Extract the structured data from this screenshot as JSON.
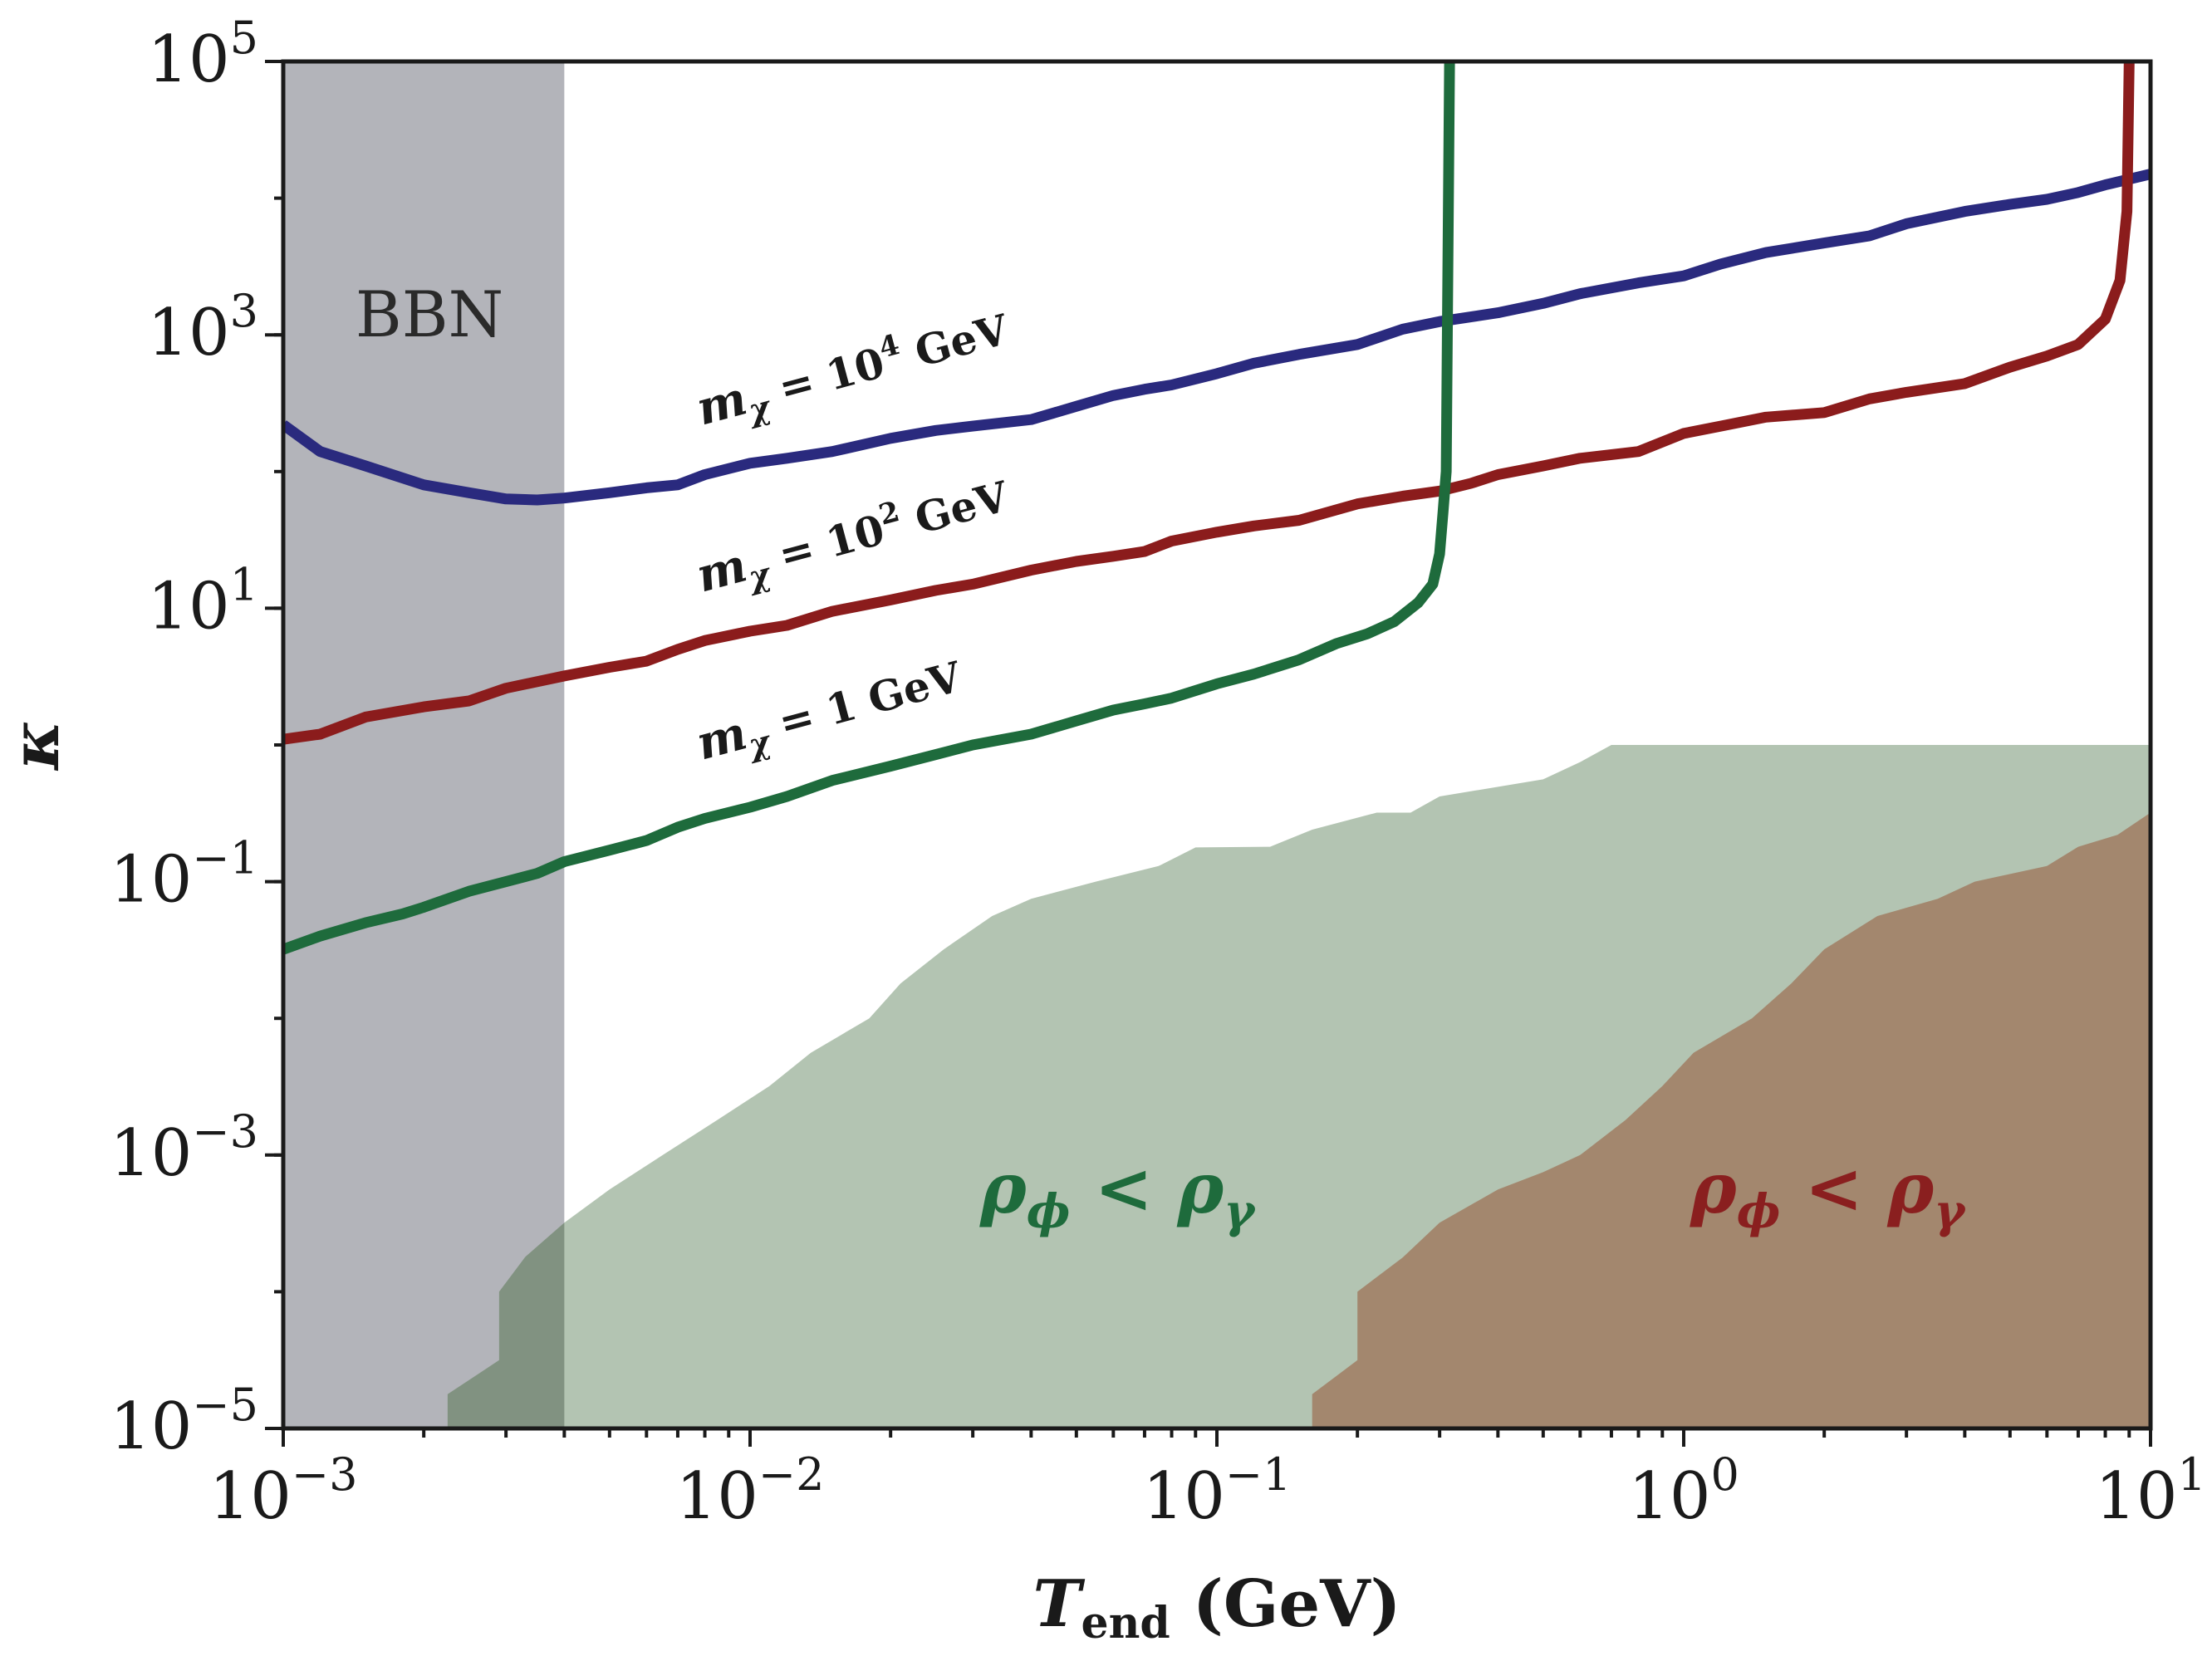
{
  "chart_data": {
    "type": "line",
    "xscale": "log",
    "yscale": "log",
    "xlim": [
      0.001,
      10
    ],
    "ylim": [
      1e-05,
      100000
    ],
    "xlabel": {
      "main": "T",
      "sub": "end",
      "unit": " (GeV)"
    },
    "ylabel": "κ",
    "x_ticks": [
      {
        "base": "10",
        "exp": "−3",
        "value": 0.001
      },
      {
        "base": "10",
        "exp": "−2",
        "value": 0.01
      },
      {
        "base": "10",
        "exp": "−1",
        "value": 0.1
      },
      {
        "base": "10",
        "exp": "0",
        "value": 1
      },
      {
        "base": "10",
        "exp": "1",
        "value": 10
      }
    ],
    "y_ticks": [
      {
        "base": "10",
        "exp": "5",
        "value": 100000
      },
      {
        "base": "10",
        "exp": "3",
        "value": 1000
      },
      {
        "base": "10",
        "exp": "1",
        "value": 10
      },
      {
        "base": "10",
        "exp": "−1",
        "value": 0.1
      },
      {
        "base": "10",
        "exp": "−3",
        "value": 0.001
      },
      {
        "base": "10",
        "exp": "−5",
        "value": 1e-05
      }
    ],
    "shaded_bands": [
      {
        "name": "BBN",
        "label": "BBN",
        "x_range": [
          0.001,
          0.004
        ],
        "color": "#b3b4ba"
      }
    ],
    "regions": [
      {
        "name": "green-region",
        "label_parts": [
          "ρ",
          "ϕ",
          " < ",
          "ρ",
          "γ"
        ],
        "label_color": "#1e6b3c",
        "fill": "#adbfab",
        "boundary": [
          [
            0.00225,
            1e-05
          ],
          [
            0.00225,
            1.78e-05
          ],
          [
            0.0029,
            3.16e-05
          ],
          [
            0.0029,
            0.0001
          ],
          [
            0.0033,
            0.00018
          ],
          [
            0.004,
            0.00032
          ],
          [
            0.005,
            0.00056
          ],
          [
            0.0065,
            0.001
          ],
          [
            0.0085,
            0.0018
          ],
          [
            0.011,
            0.0032
          ],
          [
            0.0135,
            0.0056
          ],
          [
            0.018,
            0.01
          ],
          [
            0.021,
            0.018
          ],
          [
            0.026,
            0.032
          ],
          [
            0.033,
            0.056
          ],
          [
            0.04,
            0.075
          ],
          [
            0.055,
            0.1
          ],
          [
            0.075,
            0.13
          ],
          [
            0.09,
            0.178
          ],
          [
            0.13,
            0.18
          ],
          [
            0.16,
            0.24
          ],
          [
            0.22,
            0.32
          ],
          [
            0.26,
            0.32
          ],
          [
            0.3,
            0.42
          ],
          [
            0.5,
            0.56
          ],
          [
            0.6,
            0.75
          ],
          [
            0.7,
            1.0
          ],
          [
            10,
            1.0
          ],
          [
            10,
            1e-05
          ]
        ]
      },
      {
        "name": "red-region",
        "label_parts": [
          "ρ",
          "ϕ",
          " < ",
          "ρ",
          "γ"
        ],
        "label_color": "#8a1f1f",
        "fill": "#a3876e",
        "boundary": [
          [
            0.16,
            1e-05
          ],
          [
            0.16,
            1.78e-05
          ],
          [
            0.2,
            3.16e-05
          ],
          [
            0.2,
            0.0001
          ],
          [
            0.25,
            0.000178
          ],
          [
            0.3,
            0.00032
          ],
          [
            0.4,
            0.00056
          ],
          [
            0.5,
            0.00075
          ],
          [
            0.6,
            0.001
          ],
          [
            0.75,
            0.0018
          ],
          [
            0.9,
            0.0032
          ],
          [
            1.05,
            0.0056
          ],
          [
            1.4,
            0.01
          ],
          [
            1.7,
            0.018
          ],
          [
            2.0,
            0.032
          ],
          [
            2.6,
            0.056
          ],
          [
            3.5,
            0.075
          ],
          [
            4.2,
            0.1
          ],
          [
            6.0,
            0.13
          ],
          [
            7.0,
            0.18
          ],
          [
            8.5,
            0.22
          ],
          [
            10,
            0.32
          ],
          [
            10,
            1e-05
          ]
        ]
      }
    ],
    "series": [
      {
        "name": "m_chi = 10^4 GeV",
        "label_parts": [
          "m",
          "χ",
          " = 10",
          "4",
          " GeV"
        ],
        "color": "#2a2a7e",
        "points": [
          [
            0.001,
            220
          ],
          [
            0.0012,
            140
          ],
          [
            0.0015,
            110
          ],
          [
            0.002,
            80
          ],
          [
            0.0025,
            70
          ],
          [
            0.003,
            63
          ],
          [
            0.0035,
            62
          ],
          [
            0.004,
            64
          ],
          [
            0.005,
            70
          ],
          [
            0.006,
            76
          ],
          [
            0.007,
            80
          ],
          [
            0.008,
            95
          ],
          [
            0.01,
            115
          ],
          [
            0.012,
            125
          ],
          [
            0.015,
            140
          ],
          [
            0.02,
            175
          ],
          [
            0.025,
            200
          ],
          [
            0.03,
            215
          ],
          [
            0.04,
            240
          ],
          [
            0.05,
            300
          ],
          [
            0.06,
            360
          ],
          [
            0.07,
            400
          ],
          [
            0.08,
            430
          ],
          [
            0.1,
            520
          ],
          [
            0.12,
            620
          ],
          [
            0.15,
            720
          ],
          [
            0.2,
            850
          ],
          [
            0.25,
            1100
          ],
          [
            0.3,
            1250
          ],
          [
            0.4,
            1450
          ],
          [
            0.5,
            1700
          ],
          [
            0.6,
            2000
          ],
          [
            0.8,
            2400
          ],
          [
            1.0,
            2700
          ],
          [
            1.2,
            3300
          ],
          [
            1.5,
            4000
          ],
          [
            2.0,
            4700
          ],
          [
            2.5,
            5300
          ],
          [
            3.0,
            6500
          ],
          [
            4.0,
            8000
          ],
          [
            5.0,
            9000
          ],
          [
            6.0,
            9800
          ],
          [
            7.0,
            11000
          ],
          [
            8.0,
            12500
          ],
          [
            10.0,
            15000
          ]
        ]
      },
      {
        "name": "m_chi = 10^2 GeV",
        "label_parts": [
          "m",
          "χ",
          " = 10",
          "2",
          " GeV"
        ],
        "color": "#8b1c1c",
        "points": [
          [
            0.001,
            1.1
          ],
          [
            0.0012,
            1.2
          ],
          [
            0.0015,
            1.6
          ],
          [
            0.002,
            1.9
          ],
          [
            0.0025,
            2.1
          ],
          [
            0.003,
            2.6
          ],
          [
            0.004,
            3.2
          ],
          [
            0.005,
            3.7
          ],
          [
            0.006,
            4.1
          ],
          [
            0.007,
            5.0
          ],
          [
            0.008,
            5.8
          ],
          [
            0.01,
            6.8
          ],
          [
            0.012,
            7.5
          ],
          [
            0.015,
            9.5
          ],
          [
            0.02,
            11.5
          ],
          [
            0.025,
            13.5
          ],
          [
            0.03,
            15
          ],
          [
            0.04,
            19
          ],
          [
            0.05,
            22
          ],
          [
            0.06,
            24
          ],
          [
            0.07,
            26
          ],
          [
            0.08,
            31
          ],
          [
            0.1,
            36
          ],
          [
            0.12,
            40
          ],
          [
            0.15,
            44
          ],
          [
            0.2,
            58
          ],
          [
            0.25,
            66
          ],
          [
            0.3,
            72
          ],
          [
            0.35,
            82
          ],
          [
            0.4,
            95
          ],
          [
            0.5,
            110
          ],
          [
            0.6,
            125
          ],
          [
            0.8,
            140
          ],
          [
            1.0,
            190
          ],
          [
            1.2,
            215
          ],
          [
            1.5,
            250
          ],
          [
            2.0,
            270
          ],
          [
            2.5,
            340
          ],
          [
            3.0,
            380
          ],
          [
            4.0,
            440
          ],
          [
            5.0,
            580
          ],
          [
            6.0,
            700
          ],
          [
            7.0,
            850
          ],
          [
            8.0,
            1300
          ],
          [
            8.6,
            2500
          ],
          [
            8.9,
            8000
          ],
          [
            9.0,
            100000
          ]
        ]
      },
      {
        "name": "m_chi = 1 GeV",
        "label_parts": [
          "m",
          "χ",
          " = 1 GeV"
        ],
        "color": "#1e6b3c",
        "points": [
          [
            0.001,
            0.032
          ],
          [
            0.0012,
            0.04
          ],
          [
            0.0015,
            0.05
          ],
          [
            0.0018,
            0.058
          ],
          [
            0.002,
            0.065
          ],
          [
            0.0025,
            0.085
          ],
          [
            0.003,
            0.1
          ],
          [
            0.0035,
            0.115
          ],
          [
            0.004,
            0.14
          ],
          [
            0.005,
            0.17
          ],
          [
            0.006,
            0.2
          ],
          [
            0.007,
            0.25
          ],
          [
            0.008,
            0.29
          ],
          [
            0.01,
            0.35
          ],
          [
            0.012,
            0.42
          ],
          [
            0.015,
            0.55
          ],
          [
            0.02,
            0.7
          ],
          [
            0.025,
            0.85
          ],
          [
            0.03,
            1.0
          ],
          [
            0.04,
            1.2
          ],
          [
            0.05,
            1.5
          ],
          [
            0.06,
            1.8
          ],
          [
            0.07,
            2.0
          ],
          [
            0.08,
            2.2
          ],
          [
            0.1,
            2.8
          ],
          [
            0.12,
            3.3
          ],
          [
            0.15,
            4.2
          ],
          [
            0.18,
            5.5
          ],
          [
            0.21,
            6.5
          ],
          [
            0.24,
            8.0
          ],
          [
            0.27,
            11
          ],
          [
            0.29,
            15
          ],
          [
            0.3,
            25
          ],
          [
            0.305,
            50
          ],
          [
            0.31,
            100
          ],
          [
            0.315,
            100000
          ]
        ]
      }
    ],
    "annotations": [
      {
        "target": "BBN",
        "text": "BBN"
      }
    ]
  }
}
